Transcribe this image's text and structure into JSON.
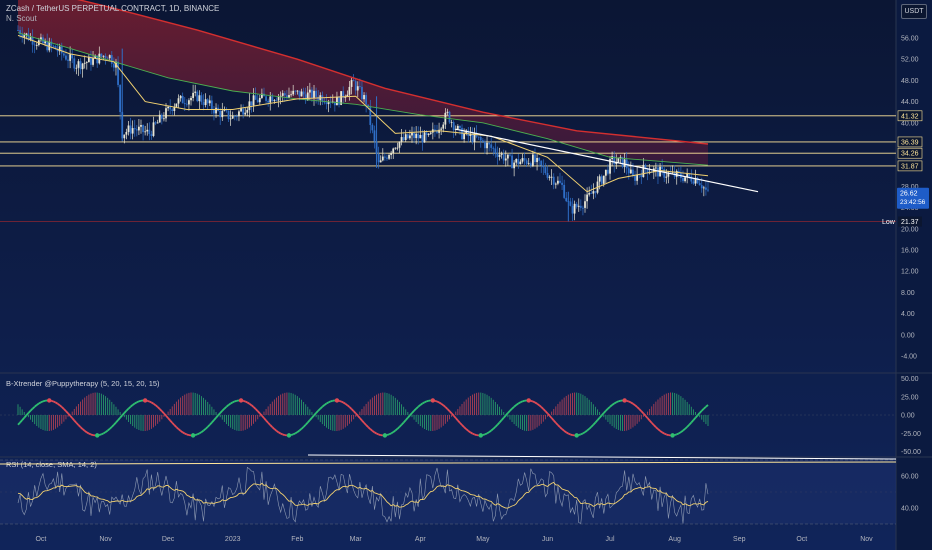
{
  "header": {
    "symbol_title": "ZCash / TetherUS PERPETUAL CONTRACT, 1D, BINANCE",
    "indicator_short": "N. Scout",
    "currency_button": "USDT"
  },
  "colors": {
    "background": "#0c1a3e",
    "up_candle": "#26a69a",
    "down_candle": "#ef5350",
    "ma_fast": "#f0d070",
    "ma_mid": "#4caf50",
    "ma_slow": "#d32f2f",
    "levels": "#ffe69a",
    "trendline": "#ffffff"
  },
  "chart_data": [
    {
      "type": "candlestick",
      "name": "ZCash / TetherUS PERPETUAL CONTRACT, 1D, BINANCE",
      "yaxis_ticks": [
        "56.00",
        "52.00",
        "48.00",
        "44.00",
        "40.00",
        "36.00",
        "32.00",
        "28.00",
        "24.00",
        "20.00",
        "16.00",
        "12.00",
        "8.00",
        "4.00",
        "0.00",
        "-4.00"
      ],
      "ylim": [
        -6,
        59
      ],
      "xaxis_ticks": [
        "Oct",
        "Nov",
        "Dec",
        "2023",
        "Feb",
        "Mar",
        "Apr",
        "May",
        "Jun",
        "Jul",
        "Aug",
        "Sep",
        "Oct",
        "Nov"
      ],
      "horizontal_levels": [
        41.32,
        36.39,
        34.26,
        31.87
      ],
      "low_marker": {
        "label": "Low",
        "value": "21.37"
      },
      "last_price": {
        "value": "26.62",
        "countdown": "23:42:56"
      },
      "close_path": [
        {
          "x": "2022-09-20",
          "y": 57.5
        },
        {
          "x": "2022-09-28",
          "y": 55.5
        },
        {
          "x": "2022-10-08",
          "y": 54.0
        },
        {
          "x": "2022-10-18",
          "y": 51.0
        },
        {
          "x": "2022-10-26",
          "y": 51.8
        },
        {
          "x": "2022-11-02",
          "y": 53.0
        },
        {
          "x": "2022-11-06",
          "y": 51.0
        },
        {
          "x": "2022-11-09",
          "y": 38.0
        },
        {
          "x": "2022-11-14",
          "y": 39.0
        },
        {
          "x": "2022-11-22",
          "y": 38.0
        },
        {
          "x": "2022-11-28",
          "y": 41.0
        },
        {
          "x": "2022-12-05",
          "y": 44.0
        },
        {
          "x": "2022-12-15",
          "y": 45.0
        },
        {
          "x": "2022-12-25",
          "y": 42.0
        },
        {
          "x": "2023-01-01",
          "y": 41.0
        },
        {
          "x": "2023-01-10",
          "y": 44.0
        },
        {
          "x": "2023-01-20",
          "y": 45.0
        },
        {
          "x": "2023-02-01",
          "y": 45.5
        },
        {
          "x": "2023-02-12",
          "y": 45.0
        },
        {
          "x": "2023-02-20",
          "y": 44.0
        },
        {
          "x": "2023-02-28",
          "y": 47.5
        },
        {
          "x": "2023-03-06",
          "y": 44.0
        },
        {
          "x": "2023-03-12",
          "y": 32.0
        },
        {
          "x": "2023-03-20",
          "y": 36.0
        },
        {
          "x": "2023-03-28",
          "y": 37.5
        },
        {
          "x": "2023-04-05",
          "y": 37.0
        },
        {
          "x": "2023-04-14",
          "y": 41.5
        },
        {
          "x": "2023-04-20",
          "y": 38.0
        },
        {
          "x": "2023-04-28",
          "y": 37.0
        },
        {
          "x": "2023-05-06",
          "y": 35.0
        },
        {
          "x": "2023-05-15",
          "y": 32.5
        },
        {
          "x": "2023-05-25",
          "y": 33.0
        },
        {
          "x": "2023-06-01",
          "y": 30.5
        },
        {
          "x": "2023-06-08",
          "y": 28.0
        },
        {
          "x": "2023-06-12",
          "y": 23.5
        },
        {
          "x": "2023-06-20",
          "y": 25.5
        },
        {
          "x": "2023-06-28",
          "y": 30.0
        },
        {
          "x": "2023-07-02",
          "y": 32.8
        },
        {
          "x": "2023-07-08",
          "y": 32.5
        },
        {
          "x": "2023-07-12",
          "y": 29.5
        },
        {
          "x": "2023-07-18",
          "y": 31.5
        },
        {
          "x": "2023-07-26",
          "y": 30.5
        },
        {
          "x": "2023-08-05",
          "y": 29.8
        },
        {
          "x": "2023-08-12",
          "y": 29.5
        },
        {
          "x": "2023-08-17",
          "y": 26.6
        }
      ],
      "ma_fast_path": [
        {
          "x": "2022-09-20",
          "y": 56.5
        },
        {
          "x": "2022-10-15",
          "y": 53.0
        },
        {
          "x": "2022-11-05",
          "y": 51.5
        },
        {
          "x": "2022-11-20",
          "y": 44.0
        },
        {
          "x": "2022-12-10",
          "y": 42.5
        },
        {
          "x": "2023-01-01",
          "y": 42.5
        },
        {
          "x": "2023-02-01",
          "y": 44.5
        },
        {
          "x": "2023-03-01",
          "y": 45.0
        },
        {
          "x": "2023-03-20",
          "y": 38.0
        },
        {
          "x": "2023-04-10",
          "y": 38.5
        },
        {
          "x": "2023-05-05",
          "y": 37.5
        },
        {
          "x": "2023-06-01",
          "y": 33.5
        },
        {
          "x": "2023-06-20",
          "y": 27.0
        },
        {
          "x": "2023-07-05",
          "y": 29.5
        },
        {
          "x": "2023-07-25",
          "y": 31.0
        },
        {
          "x": "2023-08-17",
          "y": 30.0
        }
      ],
      "ma_mid_path": [
        {
          "x": "2022-09-20",
          "y": 57.0
        },
        {
          "x": "2022-11-01",
          "y": 52.0
        },
        {
          "x": "2022-12-01",
          "y": 48.5
        },
        {
          "x": "2023-01-01",
          "y": 46.0
        },
        {
          "x": "2023-02-01",
          "y": 44.5
        },
        {
          "x": "2023-03-01",
          "y": 43.5
        },
        {
          "x": "2023-04-01",
          "y": 41.5
        },
        {
          "x": "2023-05-01",
          "y": 40.0
        },
        {
          "x": "2023-06-01",
          "y": 37.0
        },
        {
          "x": "2023-07-01",
          "y": 33.5
        },
        {
          "x": "2023-08-17",
          "y": 32.0
        }
      ],
      "ma_slow_path": [
        {
          "x": "2022-09-20",
          "y": 66.0
        },
        {
          "x": "2022-11-01",
          "y": 62.0
        },
        {
          "x": "2022-12-15",
          "y": 57.5
        },
        {
          "x": "2023-02-01",
          "y": 52.0
        },
        {
          "x": "2023-03-15",
          "y": 46.5
        },
        {
          "x": "2023-05-01",
          "y": 42.0
        },
        {
          "x": "2023-06-15",
          "y": 38.5
        },
        {
          "x": "2023-08-17",
          "y": 36.0
        }
      ],
      "trendline": [
        {
          "x": "2023-04-18",
          "y": 38.8
        },
        {
          "x": "2023-09-10",
          "y": 27.0
        }
      ]
    },
    {
      "type": "histogram",
      "name": "B-Xtrender @Puppytherapy (5, 20, 15, 20, 15)",
      "yaxis_ticks": [
        "50.00",
        "25.00",
        "0.00",
        "-25.00",
        "-50.00"
      ],
      "ylim": [
        -58,
        58
      ]
    },
    {
      "type": "line",
      "name": "RSI (14, close, SMA, 14, 2)",
      "yaxis_ticks": [
        "60.00",
        "40.00"
      ],
      "ylim": [
        20,
        80
      ],
      "bands": [
        70,
        30
      ]
    }
  ]
}
